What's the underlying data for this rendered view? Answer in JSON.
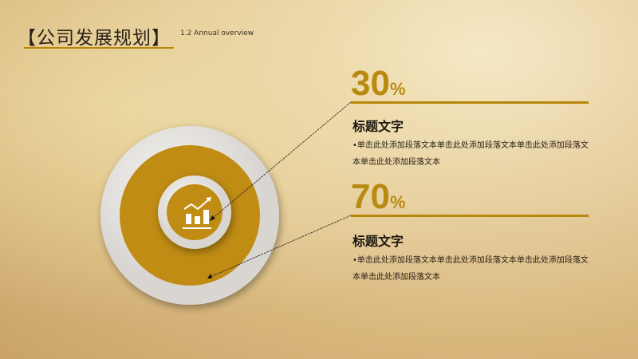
{
  "header": {
    "title": "【公司发展规划】",
    "subtitle": "1.2 Annual overview"
  },
  "items": [
    {
      "value": "30",
      "unit": "%",
      "heading": "标题文字",
      "body": "•单击此处添加段落文本单击此处添加段落文本单击此处添加段落文本单击此处添加段落文本"
    },
    {
      "value": "70",
      "unit": "%",
      "heading": "标题文字",
      "body": "•单击此处添加段落文本单击此处添加段落文本单击此处添加段落文本单击此处添加段落文本"
    }
  ],
  "colors": {
    "accent": "#b8860b",
    "ring": "#c08c14",
    "plate": "#e9e6e2"
  },
  "icon": "bar-chart-growth-icon"
}
